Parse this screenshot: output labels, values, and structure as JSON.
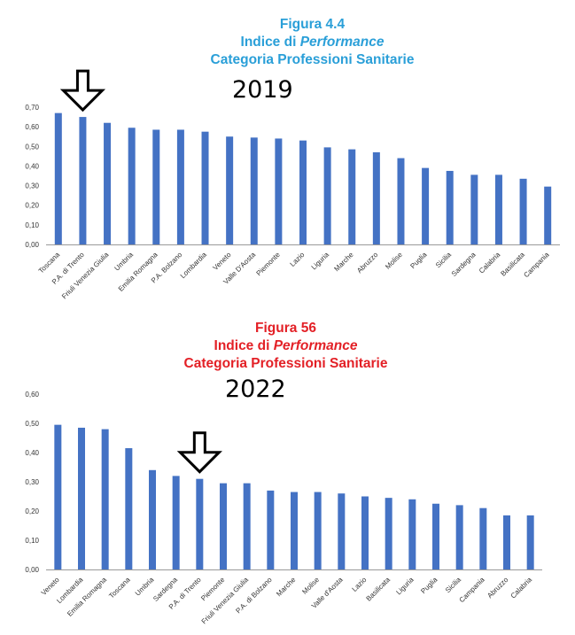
{
  "colors": {
    "bar": "#4472c4",
    "title_2019": "#2a9fd8",
    "title_2022": "#e32026"
  },
  "chart_data": [
    {
      "type": "bar",
      "figure_label": "Figura 4.4",
      "title_prefix": "Indice di ",
      "title_italic": "Performance",
      "subtitle": "Categoria Professioni Sanitarie",
      "year": "2019",
      "marker_icon": "down-arrow-icon",
      "marker_target": "P.A. di Trento",
      "ylim": [
        0,
        0.7
      ],
      "yticks": [
        "0,00",
        "0,10",
        "0,20",
        "0,30",
        "0,40",
        "0,50",
        "0,60",
        "0,70"
      ],
      "categories": [
        "Toscana",
        "P.A. di Trento",
        "Friuli Venezia Giulia",
        "Umbria",
        "Emilia Romagna",
        "P.A. Bolzano",
        "Lombardia",
        "Veneto",
        "Valle D'Aosta",
        "Piemonte",
        "Lazio",
        "Liguria",
        "Marche",
        "Abruzzo",
        "Molise",
        "Puglia",
        "Sicilia",
        "Sardegna",
        "Calabria",
        "Basilicata",
        "Campania"
      ],
      "values": [
        0.67,
        0.65,
        0.62,
        0.595,
        0.585,
        0.585,
        0.575,
        0.55,
        0.545,
        0.54,
        0.53,
        0.495,
        0.485,
        0.47,
        0.44,
        0.39,
        0.375,
        0.355,
        0.355,
        0.335,
        0.295
      ]
    },
    {
      "type": "bar",
      "figure_label": "Figura 56",
      "title_prefix": "Indice di ",
      "title_italic": "Performance",
      "subtitle": "Categoria Professioni Sanitarie",
      "year": "2022",
      "marker_icon": "down-arrow-icon",
      "marker_target": "P.A. di Trento",
      "ylim": [
        0,
        0.6
      ],
      "yticks": [
        "0,00",
        "0,10",
        "0,20",
        "0,30",
        "0,40",
        "0,50",
        "0,60"
      ],
      "categories": [
        "Veneto",
        "Lombardia",
        "Emilia Romagna",
        "Toscana",
        "Umbria",
        "Sardegna",
        "P.A. di Trento",
        "Piemonte",
        "Friuli Venezia Giulia",
        "P.A. di Bolzano",
        "Marche",
        "Molise",
        "Valle d'Aosta",
        "Lazio",
        "Basilicata",
        "Liguria",
        "Puglia",
        "Sicilia",
        "Campania",
        "Abruzzo",
        "Calabria"
      ],
      "values": [
        0.495,
        0.485,
        0.48,
        0.415,
        0.34,
        0.32,
        0.31,
        0.295,
        0.295,
        0.27,
        0.265,
        0.265,
        0.26,
        0.25,
        0.245,
        0.24,
        0.225,
        0.22,
        0.21,
        0.185,
        0.185
      ]
    }
  ]
}
